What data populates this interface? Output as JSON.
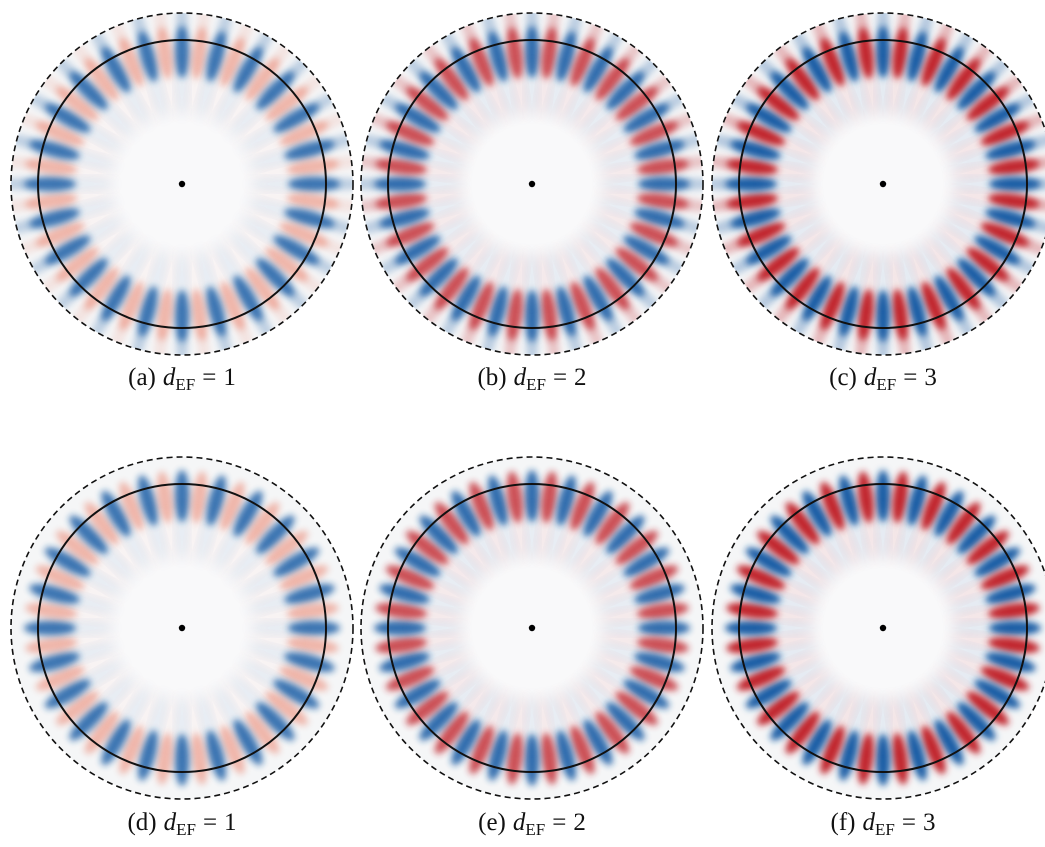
{
  "panels": [
    {
      "label": "(a)",
      "variable": "d",
      "subscript": "EF",
      "relation": "=",
      "value": 1
    },
    {
      "label": "(b)",
      "variable": "d",
      "subscript": "EF",
      "relation": "=",
      "value": 2
    },
    {
      "label": "(c)",
      "variable": "d",
      "subscript": "EF",
      "relation": "=",
      "value": 3
    },
    {
      "label": "(d)",
      "variable": "d",
      "subscript": "EF",
      "relation": "=",
      "value": 1
    },
    {
      "label": "(e)",
      "variable": "d",
      "subscript": "EF",
      "relation": "=",
      "value": 2
    },
    {
      "label": "(f)",
      "variable": "d",
      "subscript": "EF",
      "relation": "=",
      "value": 3
    }
  ]
}
